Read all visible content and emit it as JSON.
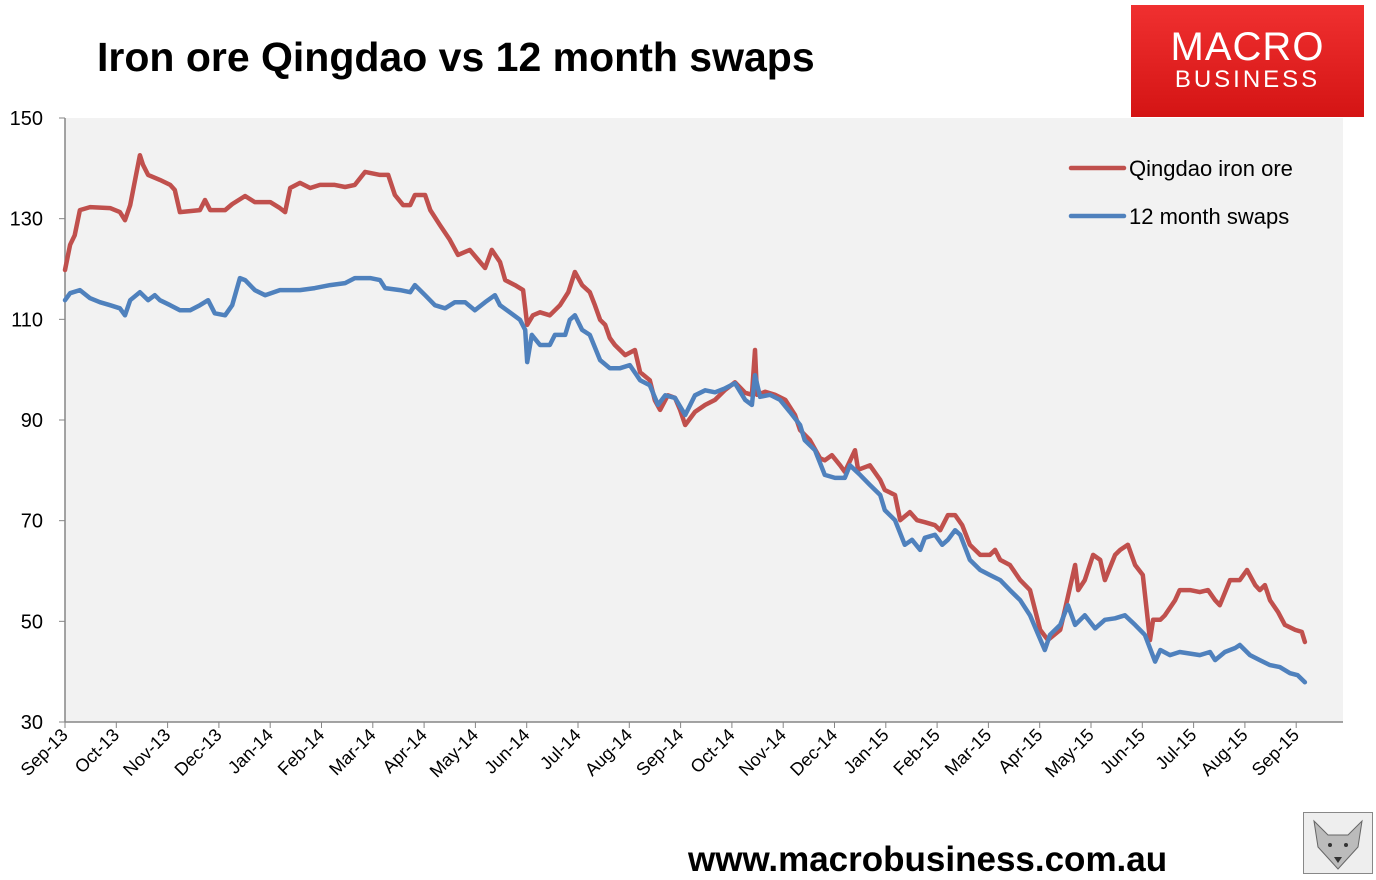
{
  "header": {
    "title": "Iron ore Qingdao vs 12 month swaps"
  },
  "logo": {
    "line1": "MACRO",
    "line2": "BUSINESS"
  },
  "footer": {
    "url": "www.macrobusiness.com.au"
  },
  "colors": {
    "red": "#c0504d",
    "blue": "#4f81bd",
    "plot_bg": "#f2f2f2"
  },
  "chart_data": {
    "type": "line",
    "title": "Iron ore Qingdao vs 12 month swaps",
    "xlabel": "",
    "ylabel": "",
    "ylim": [
      30,
      150
    ],
    "yticks": [
      30,
      50,
      70,
      90,
      110,
      130,
      150
    ],
    "xlim": [
      0,
      25
    ],
    "x_unit": "months since Sep-13",
    "xtick_labels": [
      "Sep-13",
      "Oct-13",
      "Nov-13",
      "Dec-13",
      "Jan-14",
      "Feb-14",
      "Mar-14",
      "Apr-14",
      "May-14",
      "Jun-14",
      "Jul-14",
      "Aug-14",
      "Sep-14",
      "Oct-14",
      "Nov-14",
      "Dec-14",
      "Jan-15",
      "Feb-15",
      "Mar-15",
      "Apr-15",
      "May-15",
      "Jun-15",
      "Jul-15",
      "Aug-15",
      "Sep-15"
    ],
    "grid": false,
    "legend_position": "top-right",
    "series": [
      {
        "name": "Qingdao iron ore",
        "color": "#c0504d",
        "points": [
          [
            0,
            119.8
          ],
          [
            0.1,
            124.8
          ],
          [
            0.19,
            126.7
          ],
          [
            0.29,
            131.7
          ],
          [
            0.49,
            132.3
          ],
          [
            0.88,
            132.1
          ],
          [
            1.07,
            131.3
          ],
          [
            1.17,
            129.7
          ],
          [
            1.27,
            132.7
          ],
          [
            1.46,
            142.6
          ],
          [
            1.52,
            140.7
          ],
          [
            1.62,
            138.7
          ],
          [
            1.85,
            137.7
          ],
          [
            2.05,
            136.7
          ],
          [
            2.14,
            135.7
          ],
          [
            2.24,
            131.3
          ],
          [
            2.63,
            131.7
          ],
          [
            2.73,
            133.7
          ],
          [
            2.83,
            131.7
          ],
          [
            3.12,
            131.7
          ],
          [
            3.26,
            132.9
          ],
          [
            3.51,
            134.5
          ],
          [
            3.7,
            133.3
          ],
          [
            4.0,
            133.3
          ],
          [
            4.19,
            132.1
          ],
          [
            4.29,
            131.3
          ],
          [
            4.39,
            136.1
          ],
          [
            4.58,
            137.1
          ],
          [
            4.78,
            136.1
          ],
          [
            4.97,
            136.7
          ],
          [
            5.26,
            136.7
          ],
          [
            5.46,
            136.3
          ],
          [
            5.65,
            136.7
          ],
          [
            5.85,
            139.3
          ],
          [
            6.14,
            138.7
          ],
          [
            6.3,
            138.7
          ],
          [
            6.43,
            134.7
          ],
          [
            6.59,
            132.7
          ],
          [
            6.73,
            132.7
          ],
          [
            6.82,
            134.7
          ],
          [
            7.02,
            134.7
          ],
          [
            7.12,
            131.7
          ],
          [
            7.31,
            128.7
          ],
          [
            7.5,
            125.8
          ],
          [
            7.66,
            122.8
          ],
          [
            7.89,
            123.8
          ],
          [
            8.09,
            121.4
          ],
          [
            8.19,
            120.2
          ],
          [
            8.32,
            123.8
          ],
          [
            8.48,
            121.4
          ],
          [
            8.58,
            117.8
          ],
          [
            8.77,
            116.8
          ],
          [
            8.93,
            115.8
          ],
          [
            9.01,
            108.9
          ],
          [
            9.12,
            110.8
          ],
          [
            9.26,
            111.4
          ],
          [
            9.45,
            110.8
          ],
          [
            9.65,
            112.8
          ],
          [
            9.81,
            115.4
          ],
          [
            9.94,
            119.4
          ],
          [
            10.08,
            116.8
          ],
          [
            10.23,
            115.4
          ],
          [
            10.33,
            112.8
          ],
          [
            10.43,
            109.9
          ],
          [
            10.53,
            108.9
          ],
          [
            10.62,
            106.3
          ],
          [
            10.72,
            104.9
          ],
          [
            10.92,
            102.9
          ],
          [
            11.11,
            103.9
          ],
          [
            11.21,
            99.5
          ],
          [
            11.4,
            97.9
          ],
          [
            11.5,
            93.9
          ],
          [
            11.6,
            92.0
          ],
          [
            11.75,
            94.9
          ],
          [
            11.89,
            94.4
          ],
          [
            11.99,
            92.0
          ],
          [
            12.09,
            89.0
          ],
          [
            12.28,
            91.6
          ],
          [
            12.48,
            93.0
          ],
          [
            12.67,
            94.0
          ],
          [
            12.87,
            96.0
          ],
          [
            13.06,
            97.5
          ],
          [
            13.26,
            95.4
          ],
          [
            13.39,
            95.0
          ],
          [
            13.45,
            103.9
          ],
          [
            13.49,
            95.0
          ],
          [
            13.65,
            95.6
          ],
          [
            13.84,
            95.0
          ],
          [
            14.04,
            94.0
          ],
          [
            14.23,
            91.0
          ],
          [
            14.33,
            88.0
          ],
          [
            14.52,
            86.0
          ],
          [
            14.72,
            82.4
          ],
          [
            14.81,
            82.0
          ],
          [
            14.95,
            83.0
          ],
          [
            15.11,
            81.0
          ],
          [
            15.2,
            79.7
          ],
          [
            15.4,
            84.0
          ],
          [
            15.46,
            80.1
          ],
          [
            15.69,
            81.0
          ],
          [
            15.89,
            78.1
          ],
          [
            15.98,
            76.1
          ],
          [
            16.18,
            75.1
          ],
          [
            16.28,
            70.1
          ],
          [
            16.47,
            71.7
          ],
          [
            16.61,
            70.1
          ],
          [
            16.76,
            69.7
          ],
          [
            16.96,
            69.1
          ],
          [
            17.06,
            68.1
          ],
          [
            17.21,
            71.1
          ],
          [
            17.35,
            71.1
          ],
          [
            17.49,
            69.1
          ],
          [
            17.64,
            65.2
          ],
          [
            17.84,
            63.2
          ],
          [
            18.03,
            63.2
          ],
          [
            18.13,
            64.2
          ],
          [
            18.23,
            62.2
          ],
          [
            18.42,
            61.2
          ],
          [
            18.62,
            58.2
          ],
          [
            18.81,
            56.2
          ],
          [
            19.01,
            48.3
          ],
          [
            19.16,
            46.3
          ],
          [
            19.4,
            48.3
          ],
          [
            19.49,
            52.2
          ],
          [
            19.69,
            61.2
          ],
          [
            19.75,
            56.2
          ],
          [
            19.88,
            58.2
          ],
          [
            20.04,
            63.2
          ],
          [
            20.18,
            62.2
          ],
          [
            20.27,
            58.2
          ],
          [
            20.47,
            63.2
          ],
          [
            20.57,
            64.2
          ],
          [
            20.72,
            65.2
          ],
          [
            20.86,
            61.2
          ],
          [
            21.01,
            59.2
          ],
          [
            21.15,
            46.3
          ],
          [
            21.21,
            50.3
          ],
          [
            21.35,
            50.3
          ],
          [
            21.44,
            51.2
          ],
          [
            21.64,
            54.2
          ],
          [
            21.73,
            56.2
          ],
          [
            21.93,
            56.2
          ],
          [
            22.12,
            55.8
          ],
          [
            22.28,
            56.2
          ],
          [
            22.42,
            54.2
          ],
          [
            22.51,
            53.2
          ],
          [
            22.71,
            58.2
          ],
          [
            22.9,
            58.2
          ],
          [
            23.04,
            60.2
          ],
          [
            23.2,
            57.2
          ],
          [
            23.29,
            56.2
          ],
          [
            23.39,
            57.2
          ],
          [
            23.49,
            54.2
          ],
          [
            23.65,
            51.8
          ],
          [
            23.78,
            49.3
          ],
          [
            23.98,
            48.3
          ],
          [
            24.11,
            47.9
          ],
          [
            24.17,
            45.9
          ]
        ]
      },
      {
        "name": "12 month swaps",
        "color": "#4f81bd",
        "points": [
          [
            0,
            113.8
          ],
          [
            0.1,
            115.2
          ],
          [
            0.29,
            115.8
          ],
          [
            0.49,
            114.2
          ],
          [
            0.68,
            113.4
          ],
          [
            0.88,
            112.8
          ],
          [
            1.07,
            112.2
          ],
          [
            1.17,
            110.8
          ],
          [
            1.27,
            113.8
          ],
          [
            1.46,
            115.4
          ],
          [
            1.62,
            113.8
          ],
          [
            1.75,
            114.8
          ],
          [
            1.85,
            113.8
          ],
          [
            2.05,
            112.8
          ],
          [
            2.24,
            111.8
          ],
          [
            2.44,
            111.8
          ],
          [
            2.63,
            112.8
          ],
          [
            2.79,
            113.8
          ],
          [
            2.92,
            111.2
          ],
          [
            3.12,
            110.8
          ],
          [
            3.26,
            112.8
          ],
          [
            3.41,
            118.2
          ],
          [
            3.51,
            117.8
          ],
          [
            3.7,
            115.8
          ],
          [
            3.9,
            114.8
          ],
          [
            4.19,
            115.8
          ],
          [
            4.58,
            115.8
          ],
          [
            4.87,
            116.2
          ],
          [
            5.17,
            116.8
          ],
          [
            5.46,
            117.2
          ],
          [
            5.65,
            118.2
          ],
          [
            5.95,
            118.2
          ],
          [
            6.14,
            117.8
          ],
          [
            6.24,
            116.2
          ],
          [
            6.53,
            115.8
          ],
          [
            6.73,
            115.4
          ],
          [
            6.82,
            116.8
          ],
          [
            7.02,
            114.8
          ],
          [
            7.21,
            112.8
          ],
          [
            7.41,
            112.2
          ],
          [
            7.6,
            113.4
          ],
          [
            7.8,
            113.4
          ],
          [
            7.99,
            111.8
          ],
          [
            8.19,
            113.4
          ],
          [
            8.38,
            114.8
          ],
          [
            8.48,
            112.8
          ],
          [
            8.67,
            111.4
          ],
          [
            8.87,
            109.9
          ],
          [
            8.97,
            107.9
          ],
          [
            9.01,
            101.5
          ],
          [
            9.1,
            106.9
          ],
          [
            9.26,
            104.9
          ],
          [
            9.45,
            104.9
          ],
          [
            9.55,
            106.9
          ],
          [
            9.75,
            106.9
          ],
          [
            9.84,
            109.9
          ],
          [
            9.94,
            110.8
          ],
          [
            10.08,
            107.9
          ],
          [
            10.23,
            106.9
          ],
          [
            10.43,
            101.9
          ],
          [
            10.62,
            100.3
          ],
          [
            10.82,
            100.3
          ],
          [
            11.01,
            100.9
          ],
          [
            11.21,
            97.9
          ],
          [
            11.4,
            96.9
          ],
          [
            11.56,
            93.0
          ],
          [
            11.7,
            94.9
          ],
          [
            11.89,
            94.4
          ],
          [
            12.09,
            91.0
          ],
          [
            12.28,
            94.9
          ],
          [
            12.48,
            95.9
          ],
          [
            12.67,
            95.5
          ],
          [
            12.87,
            96.3
          ],
          [
            13.06,
            97.3
          ],
          [
            13.26,
            94.0
          ],
          [
            13.39,
            93.0
          ],
          [
            13.45,
            98.9
          ],
          [
            13.55,
            94.6
          ],
          [
            13.74,
            95.0
          ],
          [
            13.94,
            94.0
          ],
          [
            14.13,
            91.6
          ],
          [
            14.33,
            89.0
          ],
          [
            14.42,
            86.0
          ],
          [
            14.62,
            84.0
          ],
          [
            14.81,
            79.1
          ],
          [
            15.01,
            78.5
          ],
          [
            15.2,
            78.5
          ],
          [
            15.3,
            81.0
          ],
          [
            15.5,
            79.1
          ],
          [
            15.69,
            77.1
          ],
          [
            15.89,
            75.1
          ],
          [
            15.98,
            72.1
          ],
          [
            16.18,
            70.1
          ],
          [
            16.37,
            65.2
          ],
          [
            16.51,
            66.2
          ],
          [
            16.67,
            64.2
          ],
          [
            16.76,
            66.6
          ],
          [
            16.96,
            67.2
          ],
          [
            17.1,
            65.2
          ],
          [
            17.21,
            66.2
          ],
          [
            17.35,
            68.1
          ],
          [
            17.45,
            67.2
          ],
          [
            17.64,
            62.2
          ],
          [
            17.84,
            60.2
          ],
          [
            18.03,
            59.2
          ],
          [
            18.23,
            58.2
          ],
          [
            18.42,
            56.2
          ],
          [
            18.62,
            54.2
          ],
          [
            18.81,
            51.2
          ],
          [
            19.1,
            44.3
          ],
          [
            19.2,
            47.3
          ],
          [
            19.4,
            49.3
          ],
          [
            19.55,
            53.2
          ],
          [
            19.69,
            49.3
          ],
          [
            19.88,
            51.2
          ],
          [
            20.08,
            48.6
          ],
          [
            20.27,
            50.3
          ],
          [
            20.47,
            50.6
          ],
          [
            20.66,
            51.2
          ],
          [
            20.86,
            49.3
          ],
          [
            21.05,
            47.3
          ],
          [
            21.25,
            42.0
          ],
          [
            21.35,
            44.3
          ],
          [
            21.54,
            43.3
          ],
          [
            21.73,
            43.9
          ],
          [
            22.12,
            43.3
          ],
          [
            22.32,
            43.9
          ],
          [
            22.42,
            42.3
          ],
          [
            22.61,
            43.9
          ],
          [
            22.81,
            44.7
          ],
          [
            22.9,
            45.3
          ],
          [
            23.1,
            43.3
          ],
          [
            23.29,
            42.3
          ],
          [
            23.49,
            41.3
          ],
          [
            23.68,
            40.9
          ],
          [
            23.88,
            39.7
          ],
          [
            24.03,
            39.3
          ],
          [
            24.17,
            37.9
          ]
        ]
      }
    ]
  }
}
